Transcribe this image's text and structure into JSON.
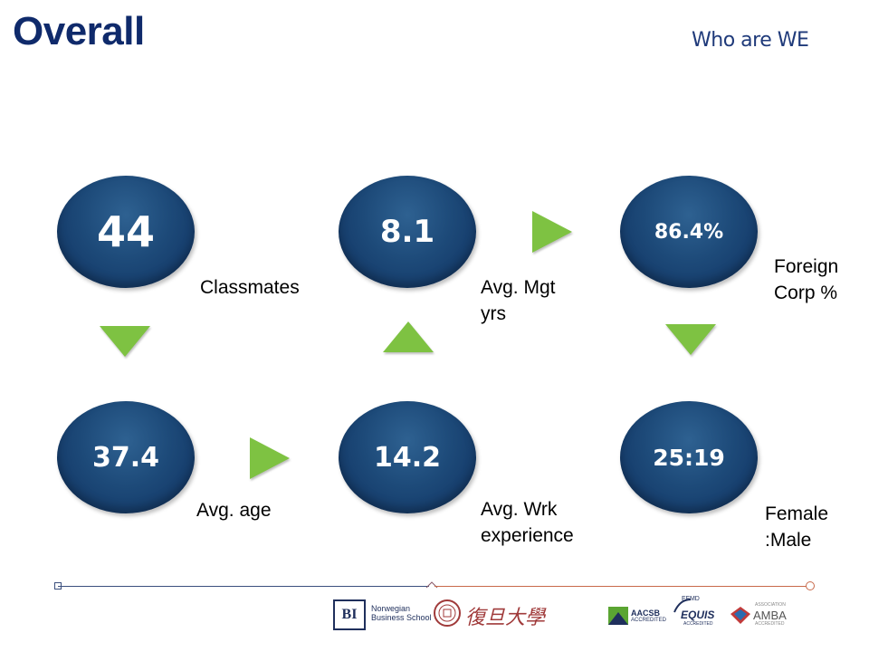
{
  "header": {
    "title": "Overall",
    "subtitle": "Who are WE"
  },
  "stats": [
    {
      "value": "44",
      "label": "Classmates"
    },
    {
      "value": "8.1",
      "label": "Avg. Mgt yrs"
    },
    {
      "value": "86.4%",
      "label": "Foreign Corp %"
    },
    {
      "value": "37.4",
      "label": "Avg. age"
    },
    {
      "value": "14.2",
      "label": "Avg. Wrk experience"
    },
    {
      "value": "25:19",
      "label": "Female :Male"
    }
  ],
  "logos": {
    "bi_mark": "BI",
    "bi_name_1": "Norwegian",
    "bi_name_2": "Business School",
    "fudan": "復旦大學",
    "aacsb_1": "AACSB",
    "aacsb_2": "ACCREDITED",
    "equis_top": "EFMD",
    "equis": "EQUIS",
    "equis_bottom": "ACCREDITED",
    "amba_top": "ASSOCIATION",
    "amba": "AMBA",
    "amba_bottom": "ACCREDITED"
  },
  "colors": {
    "title": "#0f2a6b",
    "circle": "#1d4a79",
    "arrow": "#7ec242"
  }
}
